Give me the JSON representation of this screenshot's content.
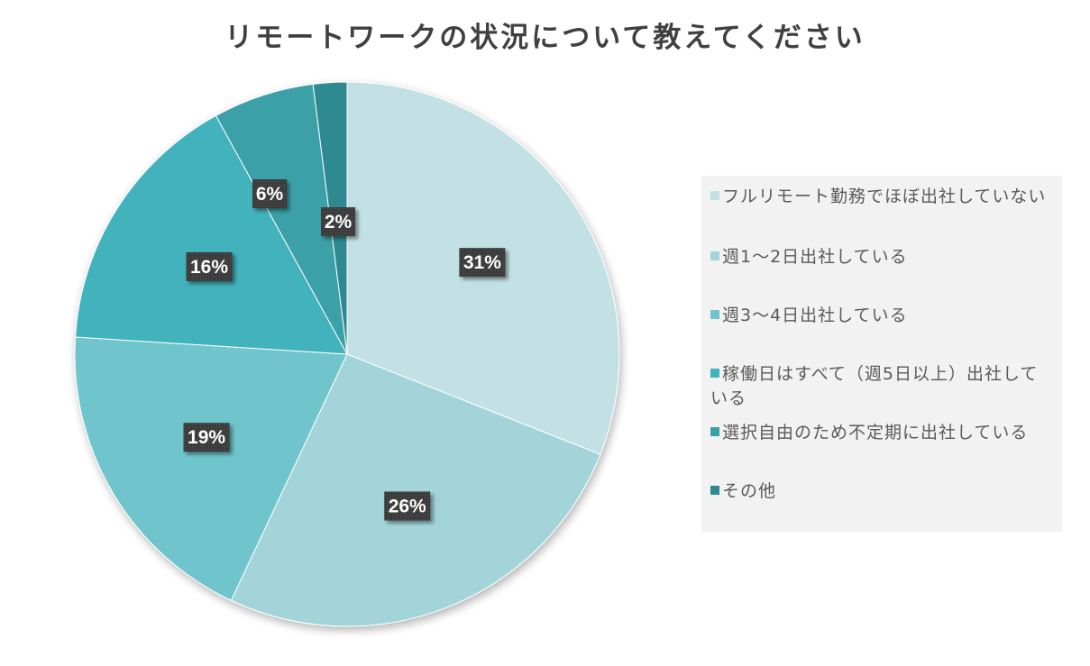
{
  "chart_data": {
    "type": "pie",
    "title": "リモートワークの状況について教えてください",
    "categories": [
      "フルリモート勤務でほぼ出社していない",
      "週1〜2日出社している",
      "週3〜4日出社している",
      "稼働日はすべて（週5日以上）出社している",
      "選択自由のため不定期に出社している",
      "その他"
    ],
    "values": [
      31,
      26,
      19,
      16,
      6,
      2
    ],
    "labels": [
      "31%",
      "26%",
      "19%",
      "16%",
      "6%",
      "2%"
    ],
    "colors": [
      "#c3e1e5",
      "#a2d4da",
      "#6fc5cd",
      "#42b2bd",
      "#3aa0a8",
      "#2d8a90"
    ],
    "legend_position": "right"
  }
}
